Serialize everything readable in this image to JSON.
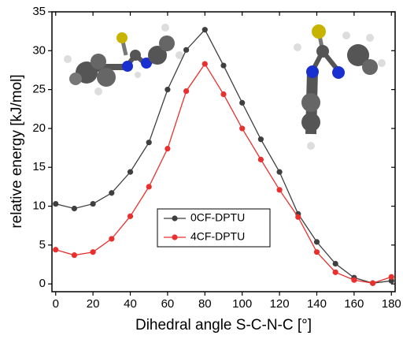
{
  "chart_data": {
    "type": "line",
    "x_label": "Dihedral angle S-C-N-C [°]",
    "y_label": "relative energy  [kJ/mol]",
    "x": [
      0,
      10,
      20,
      30,
      40,
      50,
      60,
      70,
      80,
      90,
      100,
      110,
      120,
      130,
      140,
      150,
      160,
      170,
      180
    ],
    "series": [
      {
        "name": "0CF-DPTU",
        "color": "#3f3f3f",
        "values": [
          10.3,
          9.7,
          10.3,
          11.7,
          14.4,
          18.2,
          25.0,
          30.1,
          32.7,
          28.1,
          23.3,
          18.6,
          14.4,
          9.0,
          5.4,
          2.6,
          0.8,
          0.1,
          0.4
        ]
      },
      {
        "name": "4CF-DPTU",
        "color": "#e8312f",
        "values": [
          4.4,
          3.7,
          4.1,
          5.8,
          8.7,
          12.5,
          17.4,
          24.8,
          28.3,
          24.4,
          20.0,
          16.0,
          12.1,
          8.6,
          4.1,
          1.5,
          0.5,
          0.1,
          0.9
        ]
      }
    ],
    "xlim": [
      -2,
      182
    ],
    "xticks": [
      0,
      20,
      40,
      60,
      80,
      100,
      120,
      140,
      160,
      180
    ],
    "ylim": [
      -1,
      35
    ],
    "yticks": [
      0,
      5,
      10,
      15,
      20,
      25,
      30,
      35
    ],
    "legend": "center"
  }
}
